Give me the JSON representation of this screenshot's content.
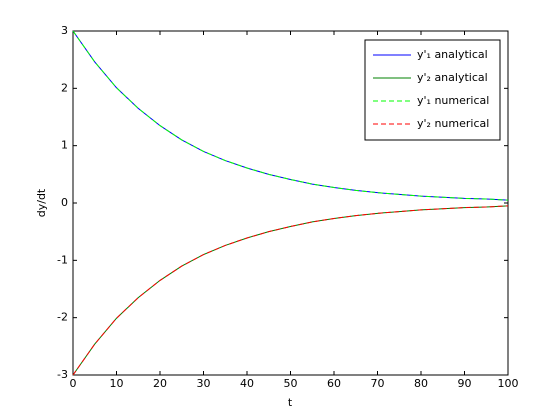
{
  "chart_data": {
    "type": "line",
    "x": [
      0,
      5,
      10,
      15,
      20,
      25,
      30,
      35,
      40,
      45,
      50,
      55,
      60,
      65,
      70,
      75,
      80,
      85,
      90,
      95,
      100
    ],
    "series": [
      {
        "name": "y'₁ analytical",
        "color": "#0000ff",
        "dash": false,
        "values": [
          3.0,
          2.46,
          2.01,
          1.65,
          1.35,
          1.1,
          0.9,
          0.74,
          0.61,
          0.5,
          0.41,
          0.33,
          0.27,
          0.22,
          0.18,
          0.15,
          0.12,
          0.1,
          0.08,
          0.07,
          0.05
        ]
      },
      {
        "name": "y'₂ analytical",
        "color": "#008000",
        "dash": false,
        "values": [
          -3.0,
          -2.46,
          -2.01,
          -1.65,
          -1.35,
          -1.1,
          -0.9,
          -0.74,
          -0.61,
          -0.5,
          -0.41,
          -0.33,
          -0.27,
          -0.22,
          -0.18,
          -0.15,
          -0.12,
          -0.1,
          -0.08,
          -0.07,
          -0.05
        ]
      },
      {
        "name": "y'₁ numerical",
        "color": "#00ff00",
        "dash": true,
        "values": [
          3.0,
          2.46,
          2.01,
          1.65,
          1.35,
          1.1,
          0.9,
          0.74,
          0.61,
          0.5,
          0.41,
          0.33,
          0.27,
          0.22,
          0.18,
          0.15,
          0.12,
          0.1,
          0.08,
          0.07,
          0.05
        ]
      },
      {
        "name": "y'₂ numerical",
        "color": "#ff0000",
        "dash": true,
        "values": [
          -3.0,
          -2.46,
          -2.01,
          -1.65,
          -1.35,
          -1.1,
          -0.9,
          -0.74,
          -0.61,
          -0.5,
          -0.41,
          -0.33,
          -0.27,
          -0.22,
          -0.18,
          -0.15,
          -0.12,
          -0.1,
          -0.08,
          -0.07,
          -0.05
        ]
      }
    ],
    "xlabel": "t",
    "ylabel": "dy/dt",
    "xlim": [
      0,
      100
    ],
    "xticks": [
      0,
      10,
      20,
      30,
      40,
      50,
      60,
      70,
      80,
      90,
      100
    ],
    "ylim": [
      -3,
      3
    ],
    "yticks": [
      -3,
      -2,
      -1,
      0,
      1,
      2,
      3
    ],
    "legend": "northeast"
  }
}
